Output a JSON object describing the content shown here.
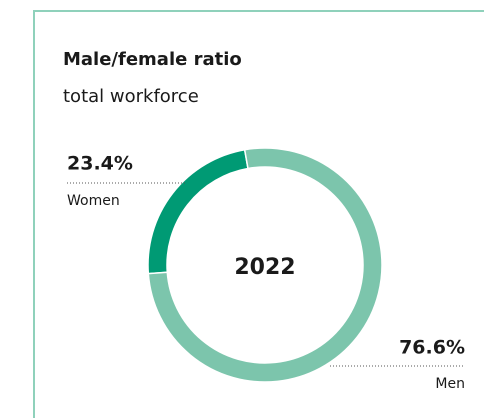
{
  "chart_data": {
    "type": "pie",
    "title": "Male/female ratio",
    "subtitle": "total workforce",
    "center_label": "2022",
    "categories": [
      "Women",
      "Men"
    ],
    "values": [
      23.4,
      76.6
    ],
    "value_labels": [
      "23.4%",
      "76.6%"
    ],
    "colors": [
      "#009a74",
      "#7cc5ac"
    ],
    "border_color": "#8fd1bb"
  }
}
